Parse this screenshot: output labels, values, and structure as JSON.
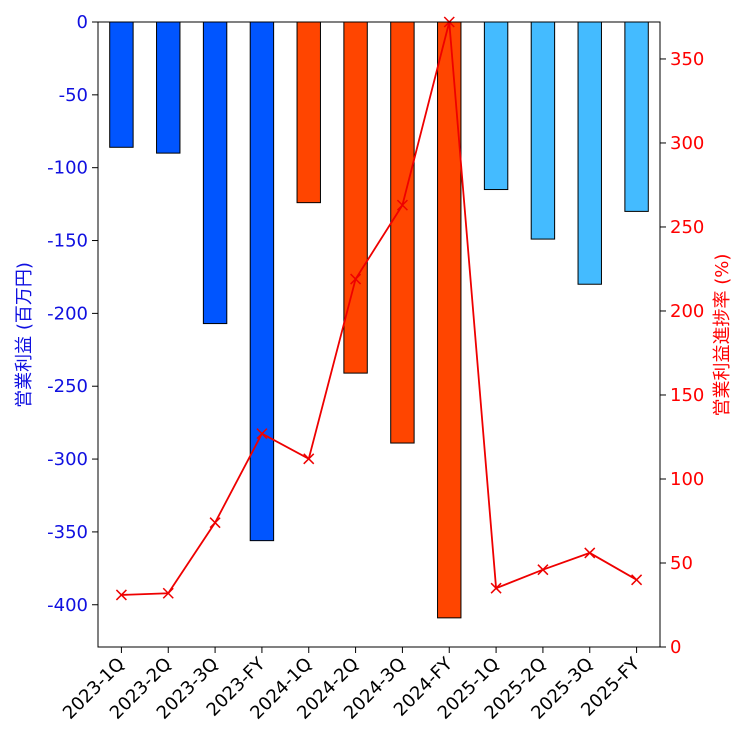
{
  "chart_data": {
    "type": "bar",
    "categories": [
      "2023-1Q",
      "2023-2Q",
      "2023-3Q",
      "2023-FY",
      "2024-1Q",
      "2024-2Q",
      "2024-3Q",
      "2024-FY",
      "2025-1Q",
      "2025-2Q",
      "2025-3Q",
      "2025-FY"
    ],
    "series": [
      {
        "axis": "left",
        "type": "bar",
        "values": [
          -86,
          -90,
          -207,
          -356,
          -124,
          -241,
          -289,
          -409,
          -115,
          -149,
          -180,
          -130
        ],
        "colors": [
          "#0055ff",
          "#0055ff",
          "#0055ff",
          "#0055ff",
          "#ff4500",
          "#ff4500",
          "#ff4500",
          "#ff4500",
          "#44bbff",
          "#44bbff",
          "#44bbff",
          "#44bbff"
        ]
      },
      {
        "axis": "right",
        "type": "line",
        "marker": "x",
        "color": "#ee0000",
        "values": [
          31,
          32,
          74,
          127,
          112,
          219,
          263,
          372,
          35,
          46,
          56,
          40
        ]
      }
    ],
    "ylabel_left": "営業利益 (百万円)",
    "ylabel_right": "営業利益進捗率 (%)",
    "ylim_left": [
      -429,
      0
    ],
    "yticks_left": [
      0,
      -50,
      -100,
      -150,
      -200,
      -250,
      -300,
      -350,
      -400
    ],
    "ylim_right": [
      0,
      372
    ],
    "yticks_right": [
      0,
      50,
      100,
      150,
      200,
      250,
      300,
      350
    ],
    "left_axis_color": "#1010e0",
    "right_axis_color": "#ff0000",
    "grid": false
  }
}
